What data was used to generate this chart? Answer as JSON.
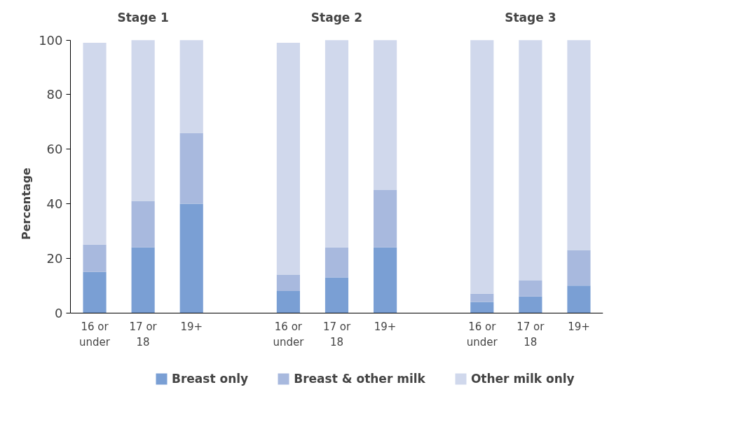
{
  "chart_data": {
    "type": "bar",
    "stacked": true,
    "ylabel": "Percentage",
    "categories": [
      "16 or under",
      "17 or 18",
      "19+",
      null,
      "16 or under",
      "17 or 18",
      "19+",
      null,
      "16 or under",
      "17 or 18",
      "19+"
    ],
    "series": [
      {
        "name": "Breast only",
        "color": "#7a9fd4",
        "values": [
          15,
          24,
          40,
          null,
          8,
          13,
          24,
          null,
          4,
          6,
          10
        ]
      },
      {
        "name": "Breast & other milk",
        "color": "#a8b9de",
        "values": [
          10,
          17,
          26,
          null,
          6,
          11,
          21,
          null,
          3,
          6,
          13
        ]
      },
      {
        "name": "Other milk only",
        "color": "#d0d8ec",
        "values": [
          74,
          59,
          34,
          null,
          85,
          76,
          55,
          null,
          93,
          88,
          77
        ]
      }
    ],
    "ylim": [
      0,
      100
    ],
    "yticks": [
      0,
      20,
      40,
      60,
      80,
      100
    ],
    "grid": false,
    "legend": "bottom",
    "annotations": [
      "Stage 1",
      "Stage 2",
      "Stage 3"
    ]
  }
}
